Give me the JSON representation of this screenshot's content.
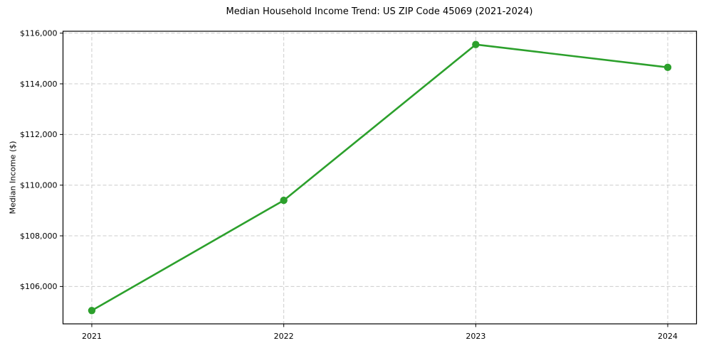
{
  "chart_data": {
    "type": "line",
    "title": "Median Household Income Trend: US ZIP Code 45069 (2021-2024)",
    "ylabel": "Median Income ($)",
    "categories": [
      "2021",
      "2022",
      "2023",
      "2024"
    ],
    "x": [
      2021,
      2022,
      2023,
      2024
    ],
    "series": [
      {
        "name": "Median Household Income",
        "values": [
          105050,
          109400,
          115550,
          114650
        ],
        "color": "#2ca02c"
      }
    ],
    "yticks": [
      106000,
      108000,
      110000,
      112000,
      114000,
      116000
    ],
    "ytick_labels": [
      "$106,000",
      "$108,000",
      "$110,000",
      "$112,000",
      "$114,000",
      "$116,000"
    ],
    "ylim": [
      104525,
      116075
    ],
    "xlim": [
      2020.85,
      2024.15
    ],
    "grid": true,
    "grid_style": "dashed",
    "legend": "none",
    "marker": "circle",
    "colors": {
      "line": "#2ca02c",
      "grid": "#cccccc",
      "spine": "#000000",
      "text": "#000000",
      "background": "#ffffff"
    }
  }
}
